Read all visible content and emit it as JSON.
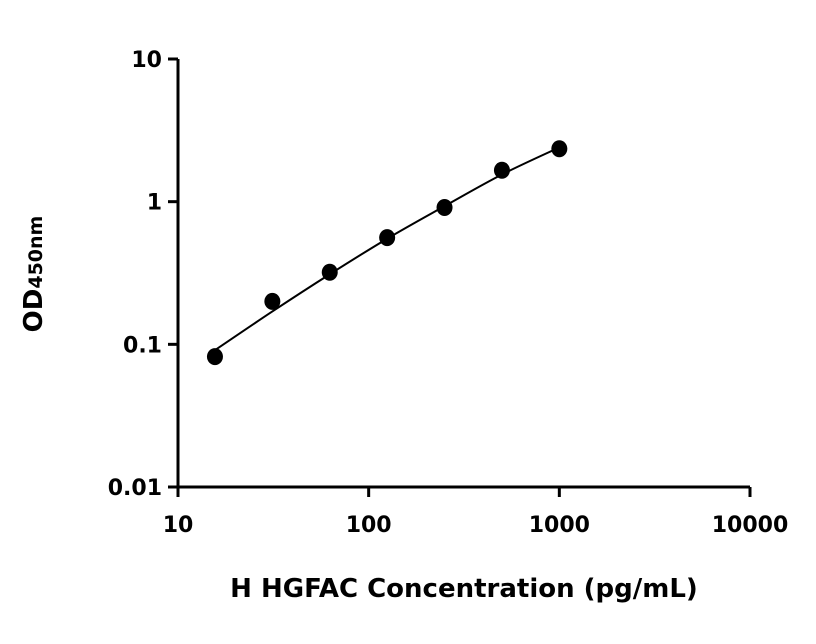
{
  "chart_data": {
    "type": "scatter",
    "title": "",
    "xlabel": "H HGFAC Concentration (pg/mL)",
    "ylabel": "OD",
    "ylabel_subscript": "450nm",
    "xscale": "log",
    "yscale": "log",
    "xlim": [
      10,
      10000
    ],
    "ylim": [
      0.01,
      10
    ],
    "x_ticks": [
      "10",
      "100",
      "1000",
      "10000"
    ],
    "y_ticks": [
      "0.01",
      "0.1",
      "1",
      "10"
    ],
    "grid": false,
    "points": {
      "x": [
        15.625,
        31.25,
        62.5,
        125,
        250,
        500,
        1000
      ],
      "y": [
        0.082,
        0.2,
        0.32,
        0.56,
        0.91,
        1.66,
        2.35
      ]
    },
    "fit_curve": {
      "x": [
        15.625,
        31.25,
        62.5,
        125,
        250,
        500,
        1000
      ],
      "y": [
        0.091,
        0.17,
        0.31,
        0.55,
        0.93,
        1.55,
        2.4
      ]
    },
    "colors": {
      "points": "#000000",
      "line": "#000000"
    }
  }
}
